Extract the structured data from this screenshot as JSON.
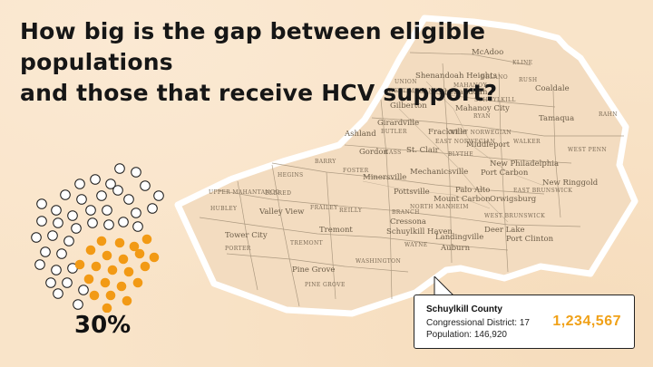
{
  "headline": {
    "line1": "How big is the gap between eligible populations",
    "line2": "and those that receive HCV support?"
  },
  "dot_chart": {
    "percent_label": "30%",
    "share_received": 0.3,
    "colors": {
      "filled": "#f29a15",
      "empty": "#ffffff",
      "outline": "#1a1a1a"
    }
  },
  "map": {
    "labels": [
      "McAdoo",
      "KLINE",
      "Shenandoah Heights",
      "DELANO",
      "UNION",
      "MAHANOY",
      "RUSH",
      "Coaldale",
      "WEST MAHANOY",
      "Shenandoah",
      "Mahanoy City",
      "Gilberton",
      "SCHUYLKILL",
      "RYAN",
      "Tamaqua",
      "RAHN",
      "Girardville",
      "BUTLER",
      "Ashland",
      "Frackville",
      "WEST NORWEGIAN",
      "Middleport",
      "EAST NORWEGIAN",
      "Gordon",
      "CASS",
      "St. Clair",
      "BLYTHE",
      "WALKER",
      "WEST PENN",
      "New Philadelphia",
      "Port Carbon",
      "HEGINS",
      "FOSTER",
      "Minersville",
      "Mechanicsville",
      "New Ringgold",
      "ELDRED",
      "BARRY",
      "Palo Alto",
      "EAST BRUNSWICK",
      "UPPER MAHANTANGO",
      "Valley View",
      "FRAILEY",
      "REILLY",
      "Pottsville",
      "Mount Carbon",
      "Orwigsburg",
      "HUBLEY",
      "Tremont",
      "BRANCH",
      "NORTH MANHEIM",
      "WEST BRUNSWICK",
      "Tower City",
      "Cressona",
      "Schuylkill Haven",
      "Deer Lake",
      "PORTER",
      "TREMONT",
      "WAYNE",
      "Landingville",
      "Auburn",
      "Port Clinton",
      "Pine Grove",
      "WASHINGTON",
      "PINE GROVE"
    ]
  },
  "tooltip": {
    "county": "Schuylkill County",
    "district": "Congressional District: 17",
    "population": "Population: 146,920",
    "value": "1,234,567"
  }
}
